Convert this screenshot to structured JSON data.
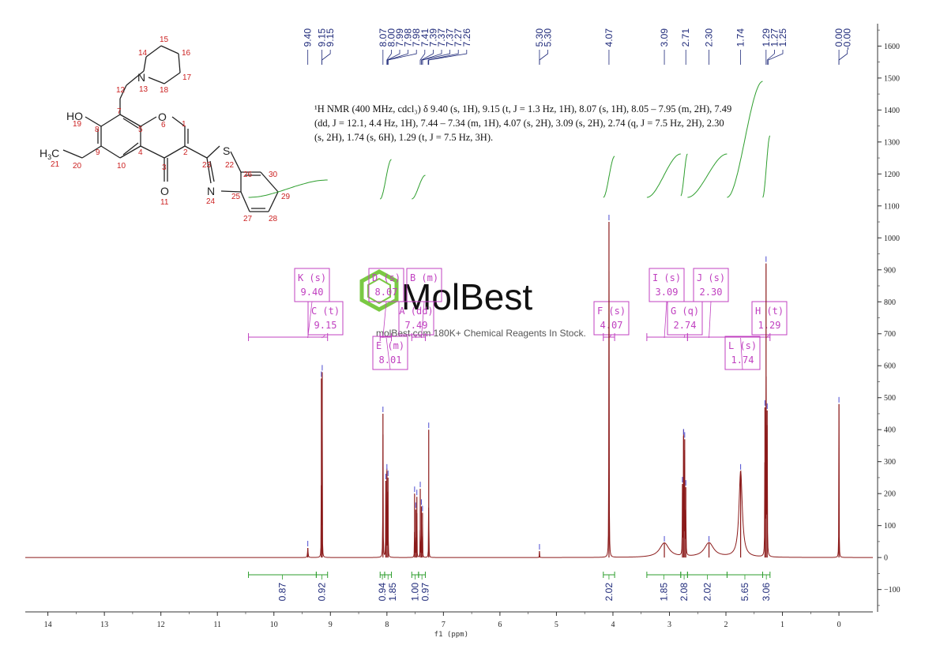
{
  "nmr_text": {
    "line1": "¹H NMR (400 MHz, cdcl₃) δ 9.40 (s, 1H), 9.15 (t, J = 1.3 Hz, 1H), 8.07 (s, 1H), 8.05 – 7.95 (m, 2H), 7.49",
    "line2": "(dd, J = 12.1, 4.4 Hz, 1H), 7.44 – 7.34 (m, 1H), 4.07 (s, 2H), 3.09 (s, 2H), 2.74 (q, J = 7.5 Hz, 2H), 2.30",
    "line3": "(s, 2H), 1.74 (s, 6H), 1.29 (t, J = 7.5 Hz, 3H)."
  },
  "watermark": {
    "brand": "MolBest",
    "tagline": "molBest.com 180K+ Chemical Reagents In Stock."
  },
  "colors": {
    "spectrum": "#8b1a1a",
    "peak_label": "#1f2a7a",
    "integration": "#2e9e2e",
    "multiplet_box": "#c040c0",
    "molecule_bonds": "#222222",
    "atom_numbers": "#cc2222"
  },
  "chart_data": {
    "type": "line",
    "xlabel": "f1 (ppm)",
    "x_axis_reversed": true,
    "xlim": [
      14.4,
      -0.6
    ],
    "ylim": [
      -170,
      1670
    ],
    "x_ticks": [
      14,
      13,
      12,
      11,
      10,
      9,
      8,
      7,
      6,
      5,
      4,
      3,
      2,
      1,
      0
    ],
    "y_ticks": [
      -100,
      0,
      100,
      200,
      300,
      400,
      500,
      600,
      700,
      800,
      900,
      1000,
      1100,
      1200,
      1300,
      1400,
      1500,
      1600
    ],
    "peak_labels": [
      "9.40",
      "9.15",
      "9.15",
      "8.07",
      "8.00",
      "7.99",
      "7.98",
      "7.98",
      "7.41",
      "7.39",
      "7.37",
      "7.37",
      "7.27",
      "7.26",
      "5.30",
      "5.30",
      "4.07",
      "3.09",
      "2.71",
      "2.30",
      "1.74",
      "1.29",
      "1.27",
      "1.25",
      "0.00",
      "-0.00"
    ],
    "peak_label_positions": [
      9.4,
      9.15,
      9.15,
      8.07,
      8.0,
      7.99,
      7.98,
      7.98,
      7.41,
      7.39,
      7.37,
      7.37,
      7.27,
      7.26,
      5.3,
      5.3,
      4.07,
      3.09,
      2.71,
      2.3,
      1.74,
      1.29,
      1.27,
      1.25,
      0.0,
      -0.0
    ],
    "peaks": [
      {
        "ppm": 9.4,
        "height": 30,
        "width": 0.012
      },
      {
        "ppm": 9.16,
        "height": 560,
        "width": 0.004
      },
      {
        "ppm": 9.145,
        "height": 580,
        "width": 0.004
      },
      {
        "ppm": 8.07,
        "height": 450,
        "width": 0.006
      },
      {
        "ppm": 8.02,
        "height": 240,
        "width": 0.005
      },
      {
        "ppm": 8.0,
        "height": 270,
        "width": 0.005
      },
      {
        "ppm": 7.98,
        "height": 250,
        "width": 0.005
      },
      {
        "ppm": 7.51,
        "height": 200,
        "width": 0.004
      },
      {
        "ppm": 7.49,
        "height": 150,
        "width": 0.004
      },
      {
        "ppm": 7.47,
        "height": 190,
        "width": 0.004
      },
      {
        "ppm": 7.41,
        "height": 215,
        "width": 0.004
      },
      {
        "ppm": 7.39,
        "height": 160,
        "width": 0.004
      },
      {
        "ppm": 7.37,
        "height": 140,
        "width": 0.004
      },
      {
        "ppm": 7.26,
        "height": 400,
        "width": 0.004
      },
      {
        "ppm": 5.3,
        "height": 20,
        "width": 0.005
      },
      {
        "ppm": 4.07,
        "height": 1050,
        "width": 0.006
      },
      {
        "ppm": 3.09,
        "height": 45,
        "width": 0.2
      },
      {
        "ppm": 2.77,
        "height": 230,
        "width": 0.006
      },
      {
        "ppm": 2.75,
        "height": 380,
        "width": 0.006
      },
      {
        "ppm": 2.73,
        "height": 370,
        "width": 0.006
      },
      {
        "ppm": 2.71,
        "height": 220,
        "width": 0.006
      },
      {
        "ppm": 2.3,
        "height": 45,
        "width": 0.2
      },
      {
        "ppm": 1.74,
        "height": 270,
        "width": 0.07
      },
      {
        "ppm": 1.31,
        "height": 470,
        "width": 0.006
      },
      {
        "ppm": 1.29,
        "height": 920,
        "width": 0.006
      },
      {
        "ppm": 1.27,
        "height": 460,
        "width": 0.006
      },
      {
        "ppm": 0.0,
        "height": 480,
        "width": 0.005
      }
    ],
    "multiplets": [
      {
        "label": "K (s)",
        "shift": "9.40",
        "ppm": 9.4
      },
      {
        "label": "C (t)",
        "shift": "9.15",
        "ppm": 9.15
      },
      {
        "label": "D (s)",
        "shift": "8.07",
        "ppm": 8.07
      },
      {
        "label": "E (m)",
        "shift": "8.01",
        "ppm": 8.01
      },
      {
        "label": "B (m)",
        "shift": "",
        "ppm": 7.39
      },
      {
        "label": "A (dd)",
        "shift": "7.49",
        "ppm": 7.49
      },
      {
        "label": "F (s)",
        "shift": "4.07",
        "ppm": 4.07
      },
      {
        "label": "I (s)",
        "shift": "3.09",
        "ppm": 3.09
      },
      {
        "label": "G (q)",
        "shift": "2.74",
        "ppm": 2.74
      },
      {
        "label": "J (s)",
        "shift": "2.30",
        "ppm": 2.3
      },
      {
        "label": "L (s)",
        "shift": "1.74",
        "ppm": 1.74
      },
      {
        "label": "H (t)",
        "shift": "1.29",
        "ppm": 1.29
      }
    ],
    "integrations": [
      {
        "value": "0.87",
        "from": 10.45,
        "to": 9.25
      },
      {
        "value": "0.92",
        "from": 9.25,
        "to": 9.05
      },
      {
        "value": "0.94",
        "from": 8.12,
        "to": 8.04
      },
      {
        "value": "1.85",
        "from": 8.04,
        "to": 7.92
      },
      {
        "value": "1.00",
        "from": 7.56,
        "to": 7.44
      },
      {
        "value": "0.97",
        "from": 7.44,
        "to": 7.32
      },
      {
        "value": "2.02",
        "from": 4.17,
        "to": 3.97
      },
      {
        "value": "1.85",
        "from": 3.4,
        "to": 2.8
      },
      {
        "value": "2.08",
        "from": 2.8,
        "to": 2.68
      },
      {
        "value": "2.02",
        "from": 2.68,
        "to": 1.98
      },
      {
        "value": "5.65",
        "from": 1.98,
        "to": 1.35
      },
      {
        "value": "3.06",
        "from": 1.35,
        "to": 1.22
      }
    ]
  },
  "molecule": {
    "atoms": [
      "N",
      "13",
      "12",
      "14",
      "15",
      "16",
      "17",
      "18",
      "HO",
      "19",
      "7",
      "8",
      "5",
      "O",
      "6",
      "1",
      "2",
      "3",
      "4",
      "9",
      "10",
      "20",
      "21",
      "O",
      "11",
      "23",
      "S",
      "22",
      "N",
      "24",
      "25",
      "26",
      "27",
      "28",
      "29",
      "30"
    ]
  }
}
